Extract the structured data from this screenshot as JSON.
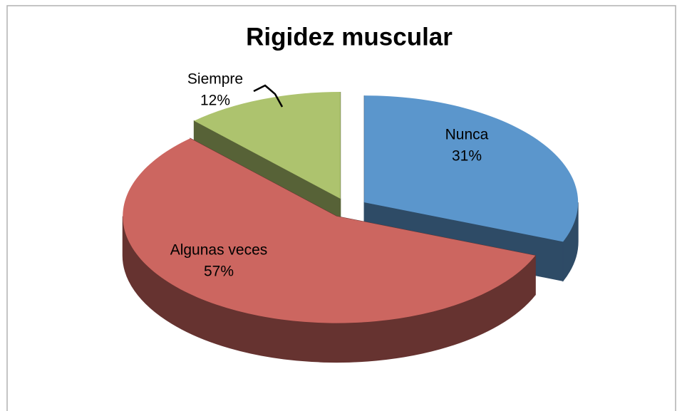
{
  "chart_data": {
    "type": "pie",
    "title": "Rigidez muscular",
    "categories": [
      "Nunca",
      "Algunas veces",
      "Siempre"
    ],
    "values": [
      31,
      57,
      12
    ],
    "value_labels": [
      "31%",
      "57%",
      "12%"
    ],
    "colors": [
      "#5b96cc",
      "#cc6660",
      "#adc36e"
    ]
  }
}
